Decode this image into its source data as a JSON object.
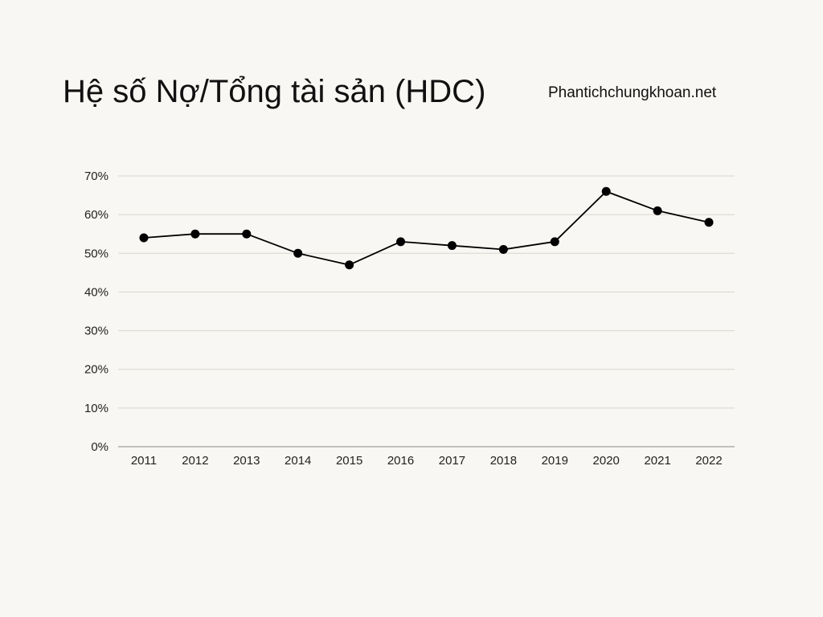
{
  "header": {
    "title": "Hệ số Nợ/Tổng tài sản (HDC)",
    "source": "Phantichchungkhoan.net"
  },
  "chart_data": {
    "type": "line",
    "title": "Hệ số Nợ/Tổng tài sản (HDC)",
    "xlabel": "",
    "ylabel": "",
    "categories": [
      "2011",
      "2012",
      "2013",
      "2014",
      "2015",
      "2016",
      "2017",
      "2018",
      "2019",
      "2020",
      "2021",
      "2022"
    ],
    "series": [
      {
        "values": [
          0.54,
          0.55,
          0.55,
          0.5,
          0.47,
          0.53,
          0.52,
          0.51,
          0.53,
          0.66,
          0.61,
          0.58
        ]
      }
    ],
    "y_ticks": [
      "0%",
      "10%",
      "20%",
      "30%",
      "40%",
      "50%",
      "60%",
      "70%"
    ],
    "ylim": [
      0,
      0.7
    ],
    "y_format": "percent",
    "grid": true,
    "legend": "none",
    "line_color": "#000000",
    "marker_color": "#000000",
    "grid_color": "#d9d6d0",
    "axis_color": "#8a8883"
  }
}
